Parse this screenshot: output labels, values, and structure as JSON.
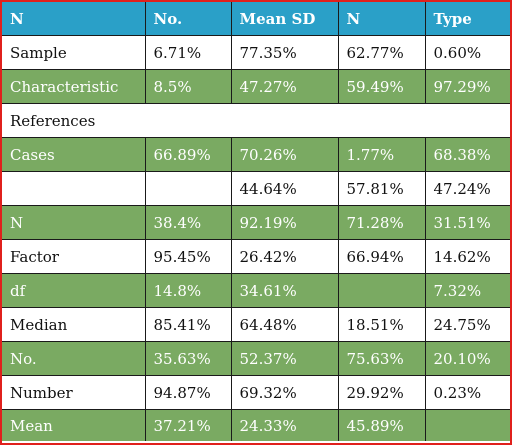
{
  "table": {
    "columns": [
      "N",
      "No.",
      "Mean SD",
      "N",
      "Type"
    ],
    "rows": [
      {
        "style": "white",
        "cells": [
          "Sample",
          "6.71%",
          "77.35%",
          "62.77%",
          "0.60%"
        ]
      },
      {
        "style": "green",
        "cells": [
          "Characteristic",
          "8.5%",
          "47.27%",
          "59.49%",
          "97.29%"
        ]
      },
      {
        "style": "white",
        "span_label": "References",
        "cells": [
          "References"
        ]
      },
      {
        "style": "green",
        "cells": [
          "Cases",
          "66.89%",
          "70.26%",
          "1.77%",
          "68.38%"
        ]
      },
      {
        "style": "white",
        "cells": [
          "",
          "",
          "44.64%",
          "57.81%",
          "47.24%"
        ]
      },
      {
        "style": "green",
        "cells": [
          "N",
          "38.4%",
          "92.19%",
          "71.28%",
          "31.51%"
        ]
      },
      {
        "style": "white",
        "cells": [
          "Factor",
          "95.45%",
          "26.42%",
          "66.94%",
          "14.62%"
        ]
      },
      {
        "style": "green",
        "cells": [
          "df",
          "14.8%",
          "34.61%",
          "",
          "7.32%"
        ]
      },
      {
        "style": "white",
        "cells": [
          "Median",
          "85.41%",
          "64.48%",
          "18.51%",
          "24.75%"
        ]
      },
      {
        "style": "green",
        "cells": [
          "No.",
          "35.63%",
          "52.37%",
          "75.63%",
          "20.10%"
        ]
      },
      {
        "style": "white",
        "cells": [
          "Number",
          "94.87%",
          "69.32%",
          "29.92%",
          "0.23%"
        ]
      },
      {
        "style": "green",
        "cells": [
          "Mean",
          "37.21%",
          "24.33%",
          "45.89%",
          ""
        ]
      }
    ]
  },
  "colors": {
    "header": "#2aa0c8",
    "green_row": "#7aaa62",
    "white_row": "#ffffff",
    "frame_border": "#e0201c"
  }
}
